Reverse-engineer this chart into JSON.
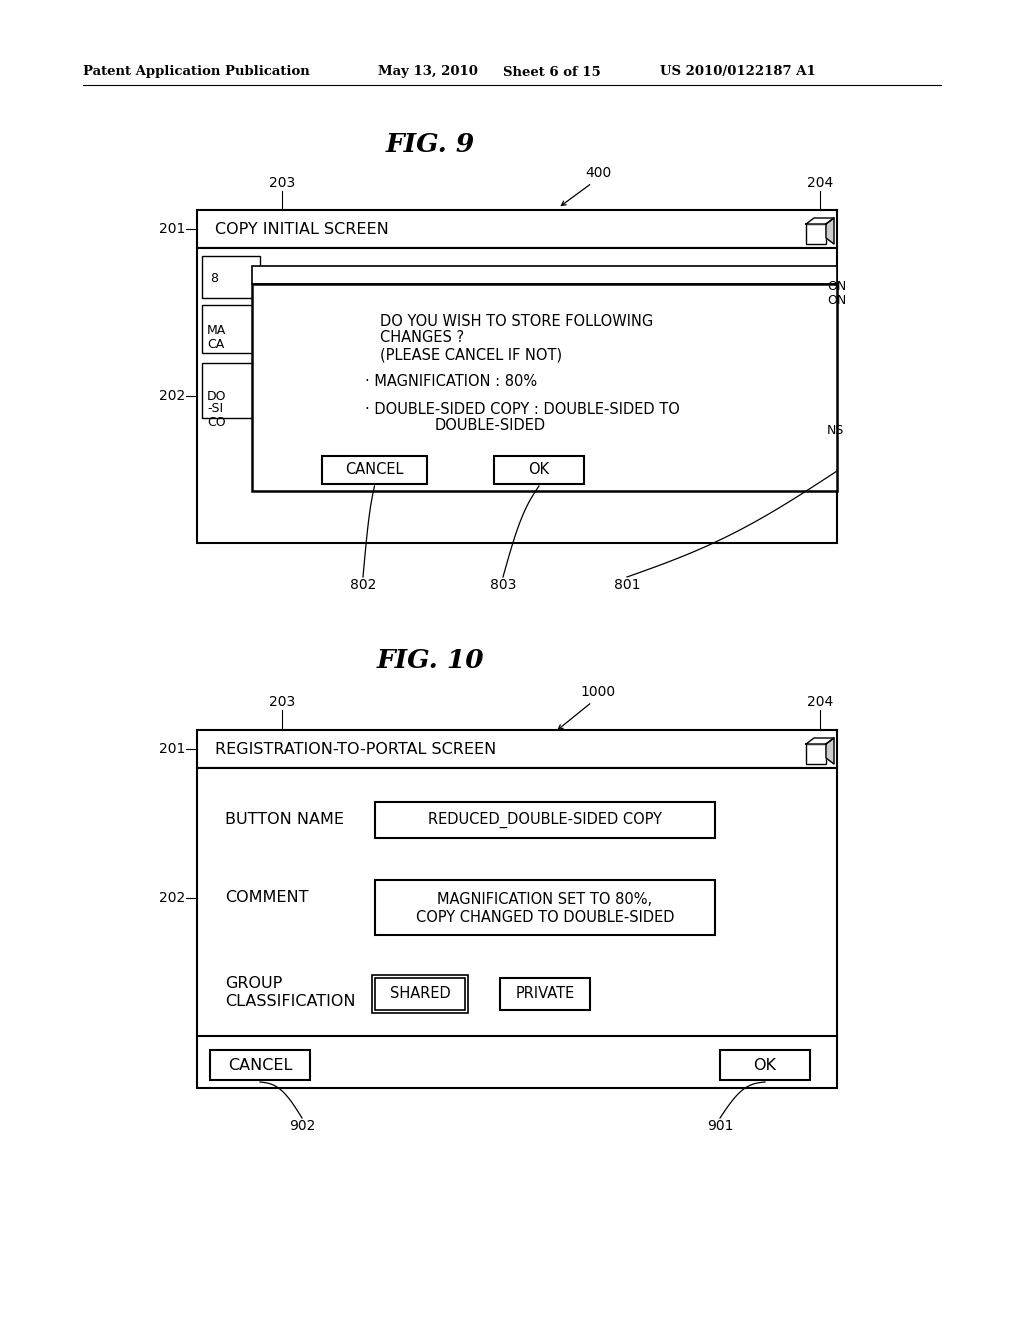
{
  "bg_color": "#ffffff",
  "header_text": "Patent Application Publication",
  "header_date": "May 13, 2010",
  "header_sheet": "Sheet 6 of 15",
  "header_patent": "US 2010/0122187 A1"
}
